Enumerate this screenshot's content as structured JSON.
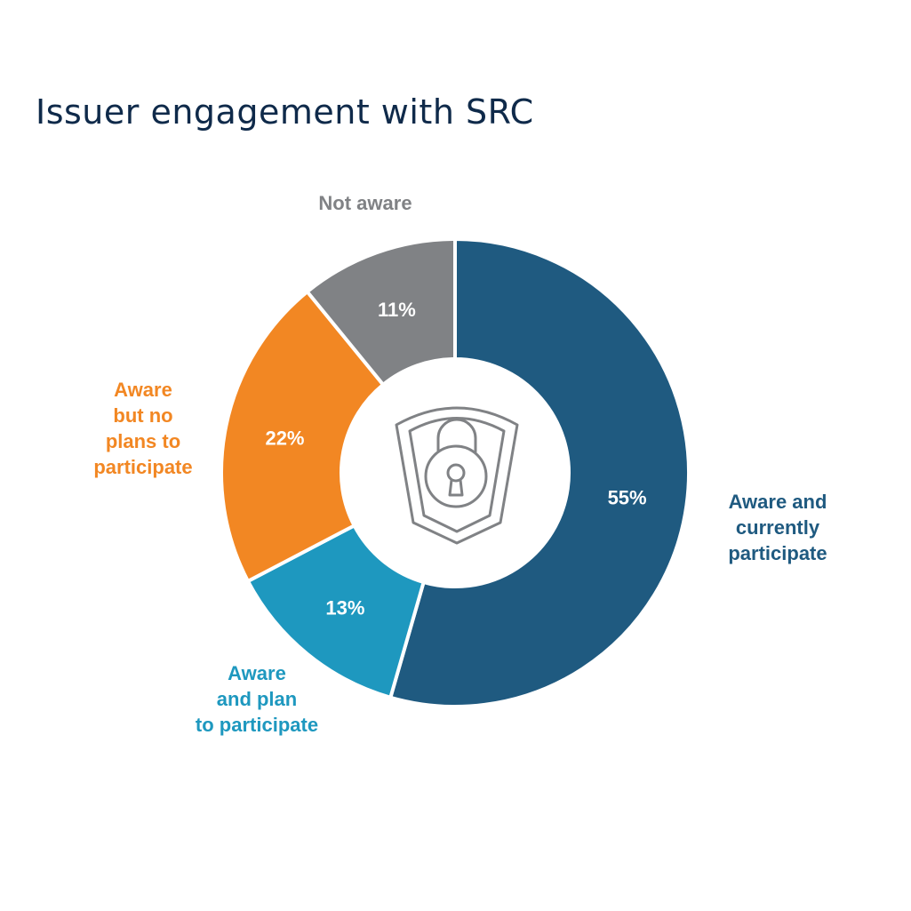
{
  "chart_data": {
    "type": "pie",
    "donut": true,
    "title": "Issuer engagement with SRC",
    "categories": [
      "Aware and currently participate",
      "Aware and plan to participate",
      "Aware but no plans to participate",
      "Not aware"
    ],
    "values": [
      55,
      13,
      22,
      11
    ],
    "value_labels": [
      "55%",
      "13%",
      "22%",
      "11%"
    ],
    "colors": [
      "#1f5a80",
      "#1e98bf",
      "#f28723",
      "#808285"
    ],
    "label_colors": [
      "#1f5a80",
      "#1e98bf",
      "#f28723",
      "#808285"
    ],
    "legend": "labels placed next to each slice",
    "center_icon": "padlock-shield-icon"
  }
}
